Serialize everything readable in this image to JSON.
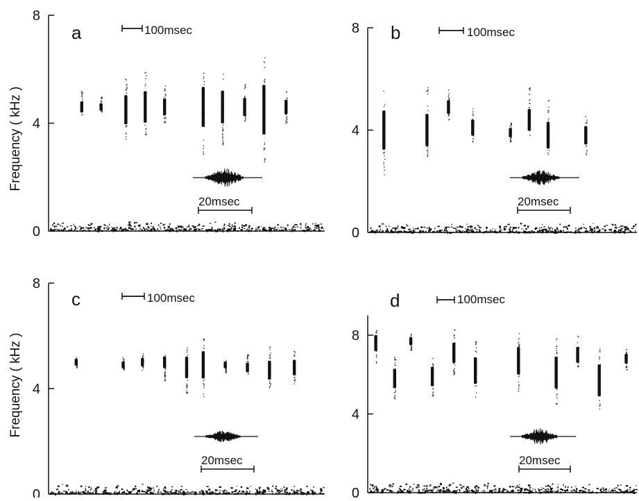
{
  "figure": {
    "ylabel": "Frequency ( kHz )"
  },
  "chart_data": [
    {
      "type": "scatter",
      "panel": "a",
      "ylabel": "Frequency ( kHz )",
      "ylim": [
        0,
        8
      ],
      "yticks": [
        "0",
        "4",
        "8"
      ],
      "time_scale_label": "100msec",
      "waveform_scale_label": "20msec",
      "pulses": [
        {
          "x": 0.12,
          "center_khz": 4.6,
          "low_khz": 4.3,
          "high_khz": 5.2
        },
        {
          "x": 0.19,
          "center_khz": 4.6,
          "low_khz": 4.4,
          "high_khz": 5.0
        },
        {
          "x": 0.28,
          "center_khz": 4.5,
          "low_khz": 3.4,
          "high_khz": 5.8
        },
        {
          "x": 0.35,
          "center_khz": 4.6,
          "low_khz": 3.5,
          "high_khz": 6.1
        },
        {
          "x": 0.42,
          "center_khz": 4.6,
          "low_khz": 4.0,
          "high_khz": 5.4
        },
        {
          "x": 0.56,
          "center_khz": 4.6,
          "low_khz": 2.8,
          "high_khz": 6.1
        },
        {
          "x": 0.63,
          "center_khz": 4.6,
          "low_khz": 3.2,
          "high_khz": 5.9
        },
        {
          "x": 0.71,
          "center_khz": 4.6,
          "low_khz": 4.0,
          "high_khz": 5.5
        },
        {
          "x": 0.78,
          "center_khz": 4.5,
          "low_khz": 2.5,
          "high_khz": 6.6
        },
        {
          "x": 0.86,
          "center_khz": 4.6,
          "low_khz": 4.0,
          "high_khz": 5.2
        }
      ]
    },
    {
      "type": "scatter",
      "panel": "b",
      "ylabel": "",
      "ylim": [
        0,
        8
      ],
      "yticks": [
        "0",
        "4",
        "8"
      ],
      "time_scale_label": "100msec",
      "waveform_scale_label": "20msec",
      "pulses": [
        {
          "x": 0.06,
          "center_khz": 4.0,
          "low_khz": 2.2,
          "high_khz": 5.6
        },
        {
          "x": 0.22,
          "center_khz": 4.0,
          "low_khz": 2.9,
          "high_khz": 5.7
        },
        {
          "x": 0.3,
          "center_khz": 4.9,
          "low_khz": 4.4,
          "high_khz": 5.6
        },
        {
          "x": 0.39,
          "center_khz": 4.1,
          "low_khz": 3.5,
          "high_khz": 4.9
        },
        {
          "x": 0.53,
          "center_khz": 3.9,
          "low_khz": 3.5,
          "high_khz": 4.3
        },
        {
          "x": 0.6,
          "center_khz": 4.4,
          "low_khz": 3.8,
          "high_khz": 5.7
        },
        {
          "x": 0.67,
          "center_khz": 3.8,
          "low_khz": 2.9,
          "high_khz": 5.2
        },
        {
          "x": 0.81,
          "center_khz": 3.8,
          "low_khz": 3.0,
          "high_khz": 4.6
        }
      ]
    },
    {
      "type": "scatter",
      "panel": "c",
      "ylabel": "Frequency ( kHz )",
      "ylim": [
        0,
        8
      ],
      "yticks": [
        "0",
        "4",
        "8"
      ],
      "time_scale_label": "100msec",
      "waveform_scale_label": "20msec",
      "pulses": [
        {
          "x": 0.1,
          "center_khz": 5.0,
          "low_khz": 4.8,
          "high_khz": 5.2
        },
        {
          "x": 0.27,
          "center_khz": 4.9,
          "low_khz": 4.7,
          "high_khz": 5.2
        },
        {
          "x": 0.34,
          "center_khz": 5.0,
          "low_khz": 4.7,
          "high_khz": 5.4
        },
        {
          "x": 0.42,
          "center_khz": 5.0,
          "low_khz": 4.3,
          "high_khz": 5.3
        },
        {
          "x": 0.5,
          "center_khz": 4.8,
          "low_khz": 3.8,
          "high_khz": 5.6
        },
        {
          "x": 0.56,
          "center_khz": 4.9,
          "low_khz": 3.7,
          "high_khz": 6.0
        },
        {
          "x": 0.64,
          "center_khz": 4.9,
          "low_khz": 4.6,
          "high_khz": 5.1
        },
        {
          "x": 0.72,
          "center_khz": 4.8,
          "low_khz": 4.5,
          "high_khz": 5.3
        },
        {
          "x": 0.8,
          "center_khz": 4.7,
          "low_khz": 4.0,
          "high_khz": 5.6
        },
        {
          "x": 0.89,
          "center_khz": 4.8,
          "low_khz": 4.2,
          "high_khz": 5.5
        }
      ]
    },
    {
      "type": "scatter",
      "panel": "d",
      "ylabel": "",
      "ylim": [
        0,
        9
      ],
      "yticks": [
        "0",
        "4",
        "8"
      ],
      "time_scale_label": "100msec",
      "waveform_scale_label": "20msec",
      "pulses": [
        {
          "x": 0.03,
          "center_khz": 7.6,
          "low_khz": 6.6,
          "high_khz": 8.4
        },
        {
          "x": 0.1,
          "center_khz": 5.8,
          "low_khz": 4.7,
          "high_khz": 6.9
        },
        {
          "x": 0.16,
          "center_khz": 7.7,
          "low_khz": 7.2,
          "high_khz": 8.1
        },
        {
          "x": 0.24,
          "center_khz": 5.9,
          "low_khz": 4.8,
          "high_khz": 7.0
        },
        {
          "x": 0.32,
          "center_khz": 7.1,
          "low_khz": 6.0,
          "high_khz": 8.3
        },
        {
          "x": 0.4,
          "center_khz": 6.2,
          "low_khz": 4.7,
          "high_khz": 7.7
        },
        {
          "x": 0.56,
          "center_khz": 6.7,
          "low_khz": 5.1,
          "high_khz": 8.2
        },
        {
          "x": 0.7,
          "center_khz": 6.1,
          "low_khz": 4.4,
          "high_khz": 8.0
        },
        {
          "x": 0.78,
          "center_khz": 7.0,
          "low_khz": 6.3,
          "high_khz": 8.1
        },
        {
          "x": 0.86,
          "center_khz": 5.7,
          "low_khz": 3.8,
          "high_khz": 7.4
        },
        {
          "x": 0.96,
          "center_khz": 6.8,
          "low_khz": 6.2,
          "high_khz": 7.3
        }
      ]
    }
  ]
}
